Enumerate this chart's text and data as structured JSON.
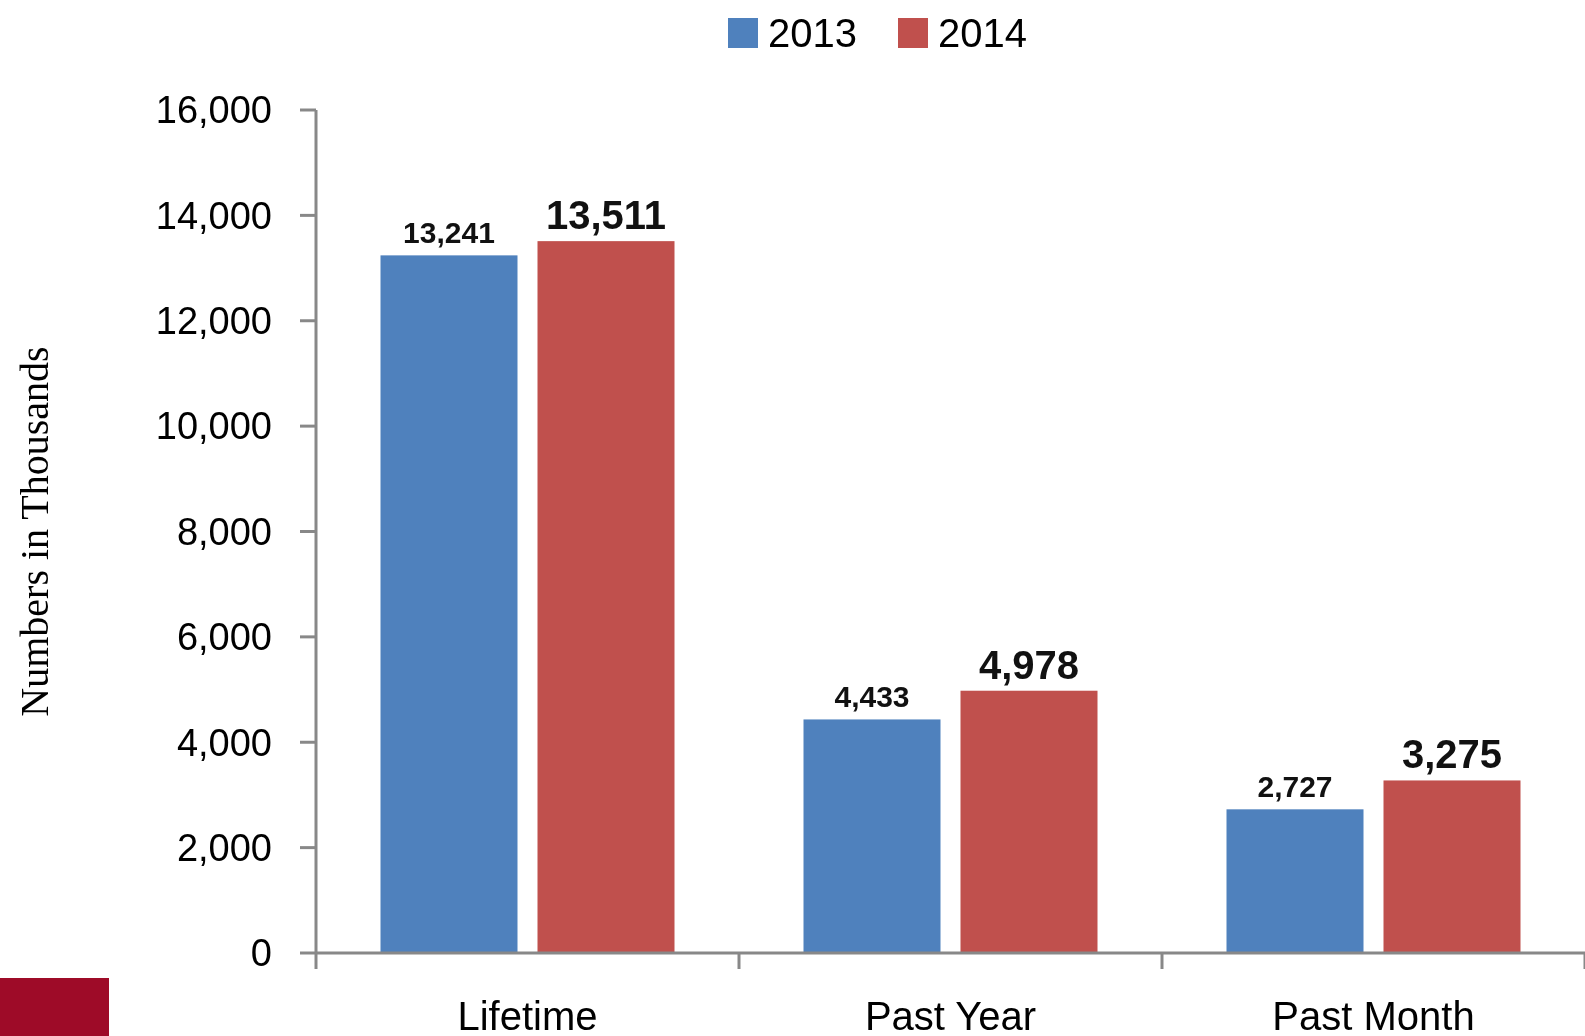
{
  "chart_data": {
    "type": "bar",
    "ylabel": "Numbers in Thousands",
    "categories": [
      "Lifetime",
      "Past Year",
      "Past Month"
    ],
    "series": [
      {
        "name": "2013",
        "color": "#4f81bd",
        "values": [
          13241,
          4433,
          2727
        ],
        "value_labels": [
          "13,241",
          "4,433",
          "2,727"
        ]
      },
      {
        "name": "2014",
        "color": "#c0504d",
        "values": [
          13511,
          4978,
          3275
        ],
        "value_labels": [
          "13,511",
          "4,978",
          "3,275"
        ]
      }
    ],
    "ylim": [
      0,
      16000
    ],
    "yticks": [
      {
        "value": 0,
        "label": "0"
      },
      {
        "value": 2000,
        "label": "2,000"
      },
      {
        "value": 4000,
        "label": "4,000"
      },
      {
        "value": 6000,
        "label": "6,000"
      },
      {
        "value": 8000,
        "label": "8,000"
      },
      {
        "value": 10000,
        "label": "10,000"
      },
      {
        "value": 12000,
        "label": "12,000"
      },
      {
        "value": 14000,
        "label": "14,000"
      },
      {
        "value": 16000,
        "label": "16,000"
      }
    ],
    "legend": "top",
    "grid": false
  }
}
